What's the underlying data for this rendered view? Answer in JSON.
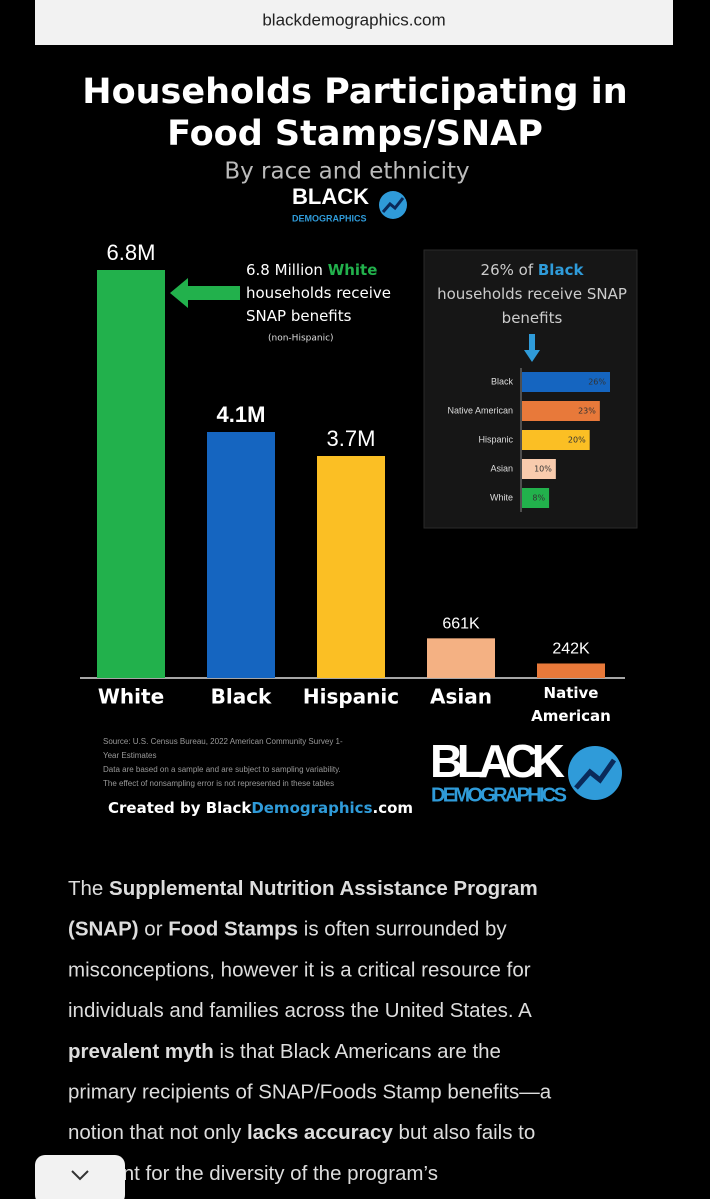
{
  "url": "blackdemographics.com",
  "logo": {
    "top": "BLACK",
    "bottom": "DEMOGRAPHICS"
  },
  "chart_data": [
    {
      "type": "bar",
      "title": [
        "Households Participating in",
        "Food Stamps/SNAP"
      ],
      "subtitle": "By race and ethnicity",
      "categories": [
        "White",
        "Black",
        "Hispanic",
        "Asian",
        "Native American"
      ],
      "values": [
        6800000,
        4100000,
        3700000,
        661000,
        242000
      ],
      "value_labels": [
        "6.8M",
        "4.1M",
        "3.7M",
        "661K",
        "242K"
      ],
      "colors": [
        "#22b14c",
        "#1565c0",
        "#fbbf24",
        "#f4b183",
        "#e8793a"
      ],
      "annotation": [
        [
          {
            "text": "6.8 Million ",
            "color": "#ffffff"
          },
          {
            "text": "White",
            "color": "#22b14c"
          }
        ],
        [
          {
            "text": "households receive",
            "color": "#ffffff"
          }
        ],
        [
          {
            "text": "SNAP benefits",
            "color": "#ffffff"
          }
        ]
      ],
      "annotation_note": "(non-Hispanic)"
    },
    {
      "type": "hbar",
      "title": [
        [
          {
            "text": "26% of ",
            "color": "#cccccc"
          },
          {
            "text": "Black",
            "color": "#2f9bd9"
          }
        ],
        [
          {
            "text": "households receive SNAP",
            "color": "#cccccc"
          }
        ],
        [
          {
            "text": "benefits",
            "color": "#cccccc"
          }
        ]
      ],
      "categories": [
        "Black",
        "Native American",
        "Hispanic",
        "Asian",
        "White"
      ],
      "values": [
        26,
        23,
        20,
        10,
        8
      ],
      "value_labels": [
        "26%",
        "23%",
        "20%",
        "10%",
        "8%"
      ],
      "colors": [
        "#1565c0",
        "#e8793a",
        "#fbbf24",
        "#f8cbad",
        "#22b14c"
      ]
    }
  ],
  "source": [
    "Source: U.S. Census Bureau, 2022 American Community Survey 1-",
    "Year Estimates",
    "Data are based on a sample and are subject to sampling variability.",
    "The effect of nonsampling error is not represented in these tables"
  ],
  "credit": [
    {
      "text": "Created by Black",
      "color": "#ffffff"
    },
    {
      "text": "Demographics",
      "color": "#2f9bd9"
    },
    {
      "text": ".com",
      "color": "#ffffff"
    }
  ],
  "article": {
    "lines": [
      [
        {
          "text": "The ",
          "bold": false
        },
        {
          "text": "Supplemental Nutrition Assistance Program",
          "bold": true
        }
      ],
      [
        {
          "text": "(SNAP)",
          "bold": true
        },
        {
          "text": " or ",
          "bold": false
        },
        {
          "text": "Food Stamps",
          "bold": true
        },
        {
          "text": " is often surrounded by",
          "bold": false
        }
      ],
      [
        {
          "text": "misconceptions, however it is a critical resource for",
          "bold": false
        }
      ],
      [
        {
          "text": "individuals and families across the United States. A",
          "bold": false
        }
      ],
      [
        {
          "text": "prevalent myth",
          "bold": true
        },
        {
          "text": " is that Black Americans are the",
          "bold": false
        }
      ],
      [
        {
          "text": "primary recipients of SNAP/Foods Stamp benefits—a",
          "bold": false
        }
      ],
      [
        {
          "text": "notion that not only ",
          "bold": false
        },
        {
          "text": "lacks accuracy",
          "bold": true
        },
        {
          "text": " but also fails to",
          "bold": false
        }
      ],
      [
        {
          "text": "account for the diversity of the program’s",
          "bold": false
        }
      ]
    ]
  }
}
